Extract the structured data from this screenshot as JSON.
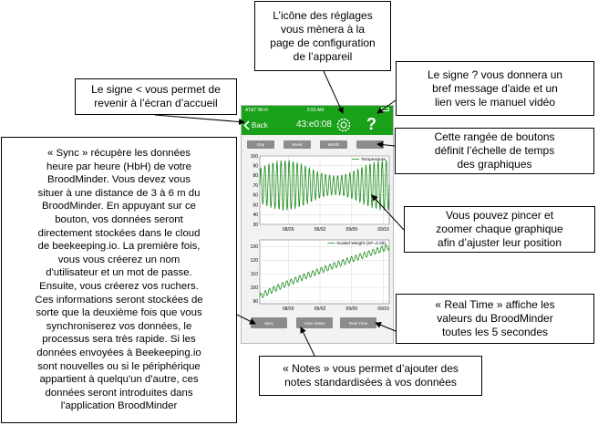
{
  "callouts": {
    "settings": "L’icône des réglages\nvous mènera à la\npage de configuration\nde l’appareil",
    "help": "Le signe ? vous donnera un\nbref message d'aide et un\nlien vers le manuel vidéo",
    "back": "Le signe < vous permet de\nrevenir à l’écran d’accueil",
    "sync": "« Sync » récupère les données\nheure par heure (HbH) de votre\nBroodMinder. Vous devez vous\nsituer à une distance de 3 à 6 m du\nBroodMinder. En appuyant sur ce\nbouton, vos données seront\ndirectement stockées dans le cloud\nde beekeeping.io. La première fois,\nvous vous créerez un nom\nd'utilisateur et un mot de passe.\nEnsuite, vous créerez vos ruchers.\nCes informations seront stockées de\nsorte que la deuxième fois que vous\nsynchroniserez vos données, le\nprocessus sera très rapide. Si les\ndonnées envoyées à Beekeeping.io\nsont nouvelles ou si le périphérique\nappartient à quelqu'un d'autre, ces\ndonnées seront introduites dans\nl'application BroodMinder",
    "timescale": "Cette rangée de boutons\ndéfinit l’échelle de temps\ndes graphiques",
    "pinch": "Vous pouvez pincer et\nzoomer chaque graphique\nafin d’ajuster leur position",
    "realtime": "« Real Time » affiche les\nvaleurs du BroodMinder\ntoutes les 5 secondes",
    "notes": "« Notes » vous permet d’ajouter des\nnotes standardisées à vos données"
  },
  "phone": {
    "carrier": "AT&T Wi-Fi",
    "time": "5:55 AM",
    "back_label": "Back",
    "device_id": "43:e0:08",
    "help_glyph": "?",
    "settings_icon": "gear-icon",
    "back_icon": "chevron-left-icon",
    "accent_color": "#1aa11a",
    "time_buttons": [
      "Day",
      "Week",
      "Month",
      ""
    ],
    "bottom_buttons": [
      "Sync",
      "View Notes",
      "Real Time"
    ]
  },
  "chart_data": [
    {
      "type": "line",
      "series": [
        {
          "name": "Temperature"
        }
      ],
      "y_ticks": [
        "100",
        "90",
        "80",
        "70",
        "60",
        "50",
        "40",
        "30"
      ],
      "x_ticks": [
        "08/26",
        "09/02",
        "09/09",
        "09/16"
      ],
      "ylim": [
        30,
        100
      ],
      "pattern": "daily oscillation, range about 45 to 95"
    },
    {
      "type": "line",
      "series": [
        {
          "name": "Scaled Weight (SF=2.00)"
        }
      ],
      "y_ticks": [
        "130",
        "120",
        "110",
        "100",
        "90"
      ],
      "x_ticks": [
        "08/26",
        "09/02",
        "09/09",
        "09/16"
      ],
      "ylim": [
        88,
        135
      ],
      "pattern": "rising trend from about 94 to 130"
    }
  ]
}
